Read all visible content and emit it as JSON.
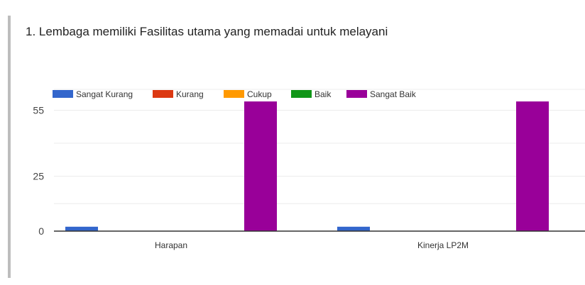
{
  "question": {
    "title": "1. Lembaga memiliki Fasilitas utama yang memadai untuk melayani"
  },
  "chart_data": {
    "type": "bar",
    "categories": [
      "Harapan",
      "Kinerja LP2M"
    ],
    "series": [
      {
        "name": "Sangat Kurang",
        "color": "#3366cc",
        "values": [
          2,
          2
        ]
      },
      {
        "name": "Kurang",
        "color": "#dc3912",
        "values": [
          0,
          0
        ]
      },
      {
        "name": "Cukup",
        "color": "#ff9900",
        "values": [
          0,
          0
        ]
      },
      {
        "name": "Baik",
        "color": "#109618",
        "values": [
          0,
          0
        ]
      },
      {
        "name": "Sangat Baik",
        "color": "#990099",
        "values": [
          59,
          59
        ]
      }
    ],
    "yticks": [
      0,
      25,
      55
    ],
    "ylim": [
      0,
      60
    ],
    "grid": true,
    "legend_position": "top-left"
  }
}
